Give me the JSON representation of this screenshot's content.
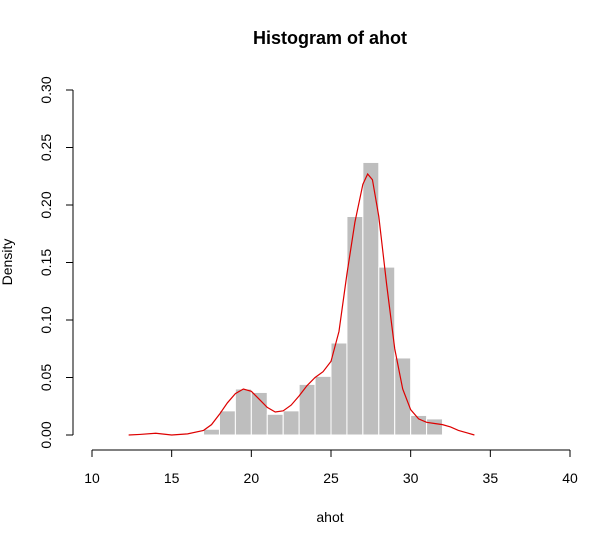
{
  "chart_data": {
    "type": "bar",
    "title": "Histogram of ahot",
    "xlabel": "ahot",
    "ylabel": "Density",
    "xlim": [
      10,
      40
    ],
    "ylim": [
      0,
      0.3
    ],
    "xticks": [
      10,
      15,
      20,
      25,
      30,
      35,
      40
    ],
    "xtick_labels": [
      "10",
      "15",
      "20",
      "25",
      "30",
      "35",
      "40"
    ],
    "yticks": [
      0.0,
      0.05,
      0.1,
      0.15,
      0.2,
      0.25,
      0.3
    ],
    "ytick_labels": [
      "0.00",
      "0.05",
      "0.10",
      "0.15",
      "0.20",
      "0.25",
      "0.30"
    ],
    "bin_width": 1,
    "bins": [
      {
        "x0": 17,
        "x1": 18,
        "density": 0.005
      },
      {
        "x0": 18,
        "x1": 19,
        "density": 0.021
      },
      {
        "x0": 19,
        "x1": 20,
        "density": 0.04
      },
      {
        "x0": 20,
        "x1": 21,
        "density": 0.037
      },
      {
        "x0": 21,
        "x1": 22,
        "density": 0.018
      },
      {
        "x0": 22,
        "x1": 23,
        "density": 0.021
      },
      {
        "x0": 23,
        "x1": 24,
        "density": 0.044
      },
      {
        "x0": 24,
        "x1": 25,
        "density": 0.051
      },
      {
        "x0": 25,
        "x1": 26,
        "density": 0.08
      },
      {
        "x0": 26,
        "x1": 27,
        "density": 0.19
      },
      {
        "x0": 27,
        "x1": 28,
        "density": 0.237
      },
      {
        "x0": 28,
        "x1": 29,
        "density": 0.146
      },
      {
        "x0": 29,
        "x1": 30,
        "density": 0.067
      },
      {
        "x0": 30,
        "x1": 31,
        "density": 0.017
      },
      {
        "x0": 31,
        "x1": 32,
        "density": 0.014
      }
    ],
    "density_curve": {
      "x": [
        12.3,
        13.0,
        14.0,
        15.0,
        16.0,
        17.0,
        17.5,
        18.0,
        18.5,
        19.0,
        19.5,
        20.0,
        20.5,
        21.0,
        21.5,
        22.0,
        22.5,
        23.0,
        23.5,
        24.0,
        24.5,
        25.0,
        25.5,
        26.0,
        26.5,
        27.0,
        27.3,
        27.6,
        28.0,
        28.5,
        29.0,
        29.5,
        30.0,
        30.5,
        31.0,
        31.5,
        32.0,
        32.5,
        33.0,
        33.5,
        34.0
      ],
      "y": [
        0.0,
        0.0005,
        0.0015,
        0.0,
        0.001,
        0.004,
        0.009,
        0.018,
        0.028,
        0.036,
        0.04,
        0.038,
        0.031,
        0.024,
        0.02,
        0.021,
        0.026,
        0.034,
        0.043,
        0.05,
        0.055,
        0.064,
        0.09,
        0.14,
        0.185,
        0.218,
        0.227,
        0.222,
        0.19,
        0.13,
        0.075,
        0.04,
        0.022,
        0.014,
        0.011,
        0.01,
        0.009,
        0.007,
        0.004,
        0.002,
        0.0
      ],
      "color": "#dd0000"
    },
    "bar_color": "#bebebe",
    "bar_edge_color": "#ffffff",
    "grid": false
  }
}
